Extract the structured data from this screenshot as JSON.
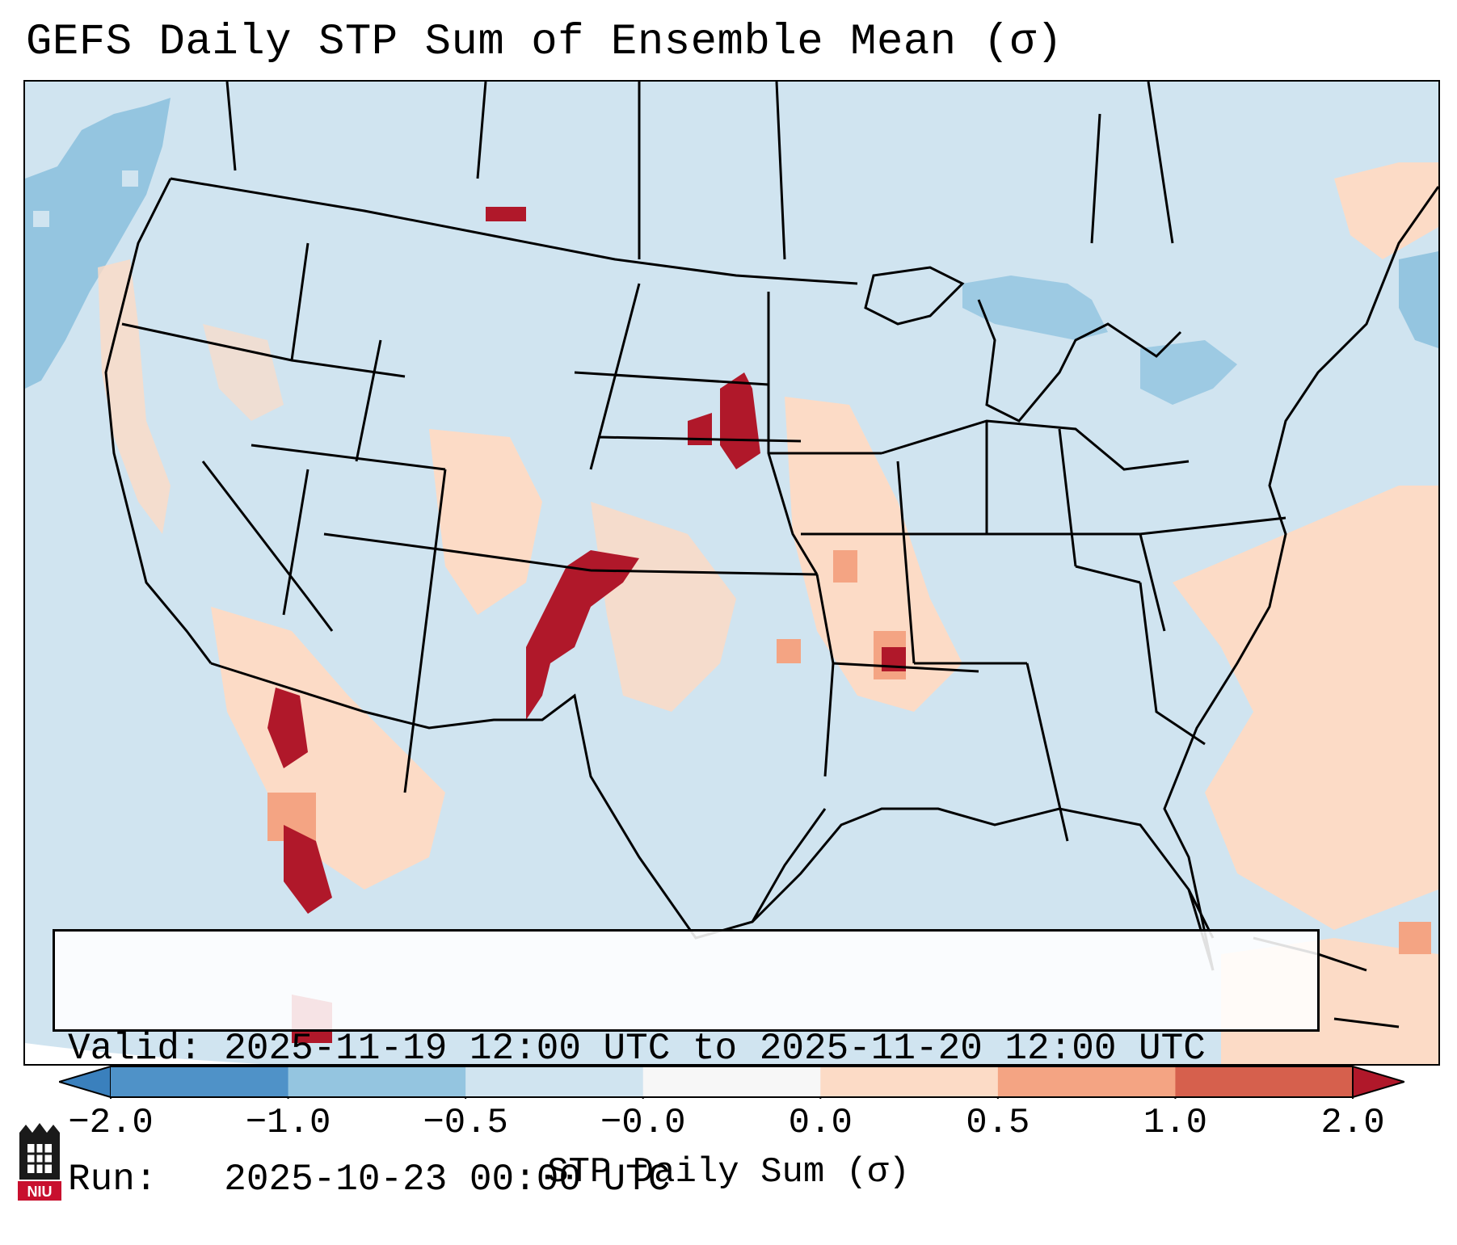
{
  "title": "GEFS Daily STP Sum of Ensemble Mean (σ)",
  "valid_label": "Valid:",
  "valid_text": "2025-11-19 12:00 UTC to 2025-11-20 12:00 UTC",
  "run_label": "Run:",
  "run_text": "2025-10-23 00:00 UTC",
  "colorbar": {
    "label": "STP Daily Sum (σ)",
    "ticks": [
      "−2.0",
      "−1.0",
      "−0.5",
      "−0.0",
      "0.0",
      "0.5",
      "1.0",
      "2.0"
    ],
    "bins": [
      {
        "range": "< -2.0",
        "color": "#3a80bd"
      },
      {
        "range": "-2.0 to -1.0",
        "color": "#4f92c8"
      },
      {
        "range": "-1.0 to -0.5",
        "color": "#94c5e0"
      },
      {
        "range": "-0.5 to -0.0",
        "color": "#d0e4f0"
      },
      {
        "range": "-0.0 to 0.0",
        "color": "#f7f7f7"
      },
      {
        "range": "0.0 to 0.5",
        "color": "#fcdbc6"
      },
      {
        "range": "0.5 to 1.0",
        "color": "#f4a483"
      },
      {
        "range": "1.0 to 2.0",
        "color": "#d6604d"
      },
      {
        "range": "> 2.0",
        "color": "#b0182a"
      }
    ]
  },
  "background_color": "#d0e4f0",
  "logo_text": "NIU",
  "anomaly_areas": [
    {
      "region": "Texas/Oklahoma panhandle & eastern New Mexico",
      "level": "> 2.0"
    },
    {
      "region": "Nebraska/South Dakota border",
      "level": "> 2.0"
    },
    {
      "region": "Northern Montana",
      "level": "> 2.0"
    },
    {
      "region": "Gulf of California / western Mexico",
      "level": "> 2.0"
    },
    {
      "region": "Lower Mississippi Valley",
      "level": "1.0 to 2.0"
    },
    {
      "region": "Pacific Northwest coast offshore",
      "level": "-1.0 to -0.5"
    },
    {
      "region": "Great Lakes / New York",
      "level": "-1.0 to -0.5"
    },
    {
      "region": "Western Atlantic / Caribbean",
      "level": "0.0 to 0.5"
    }
  ]
}
